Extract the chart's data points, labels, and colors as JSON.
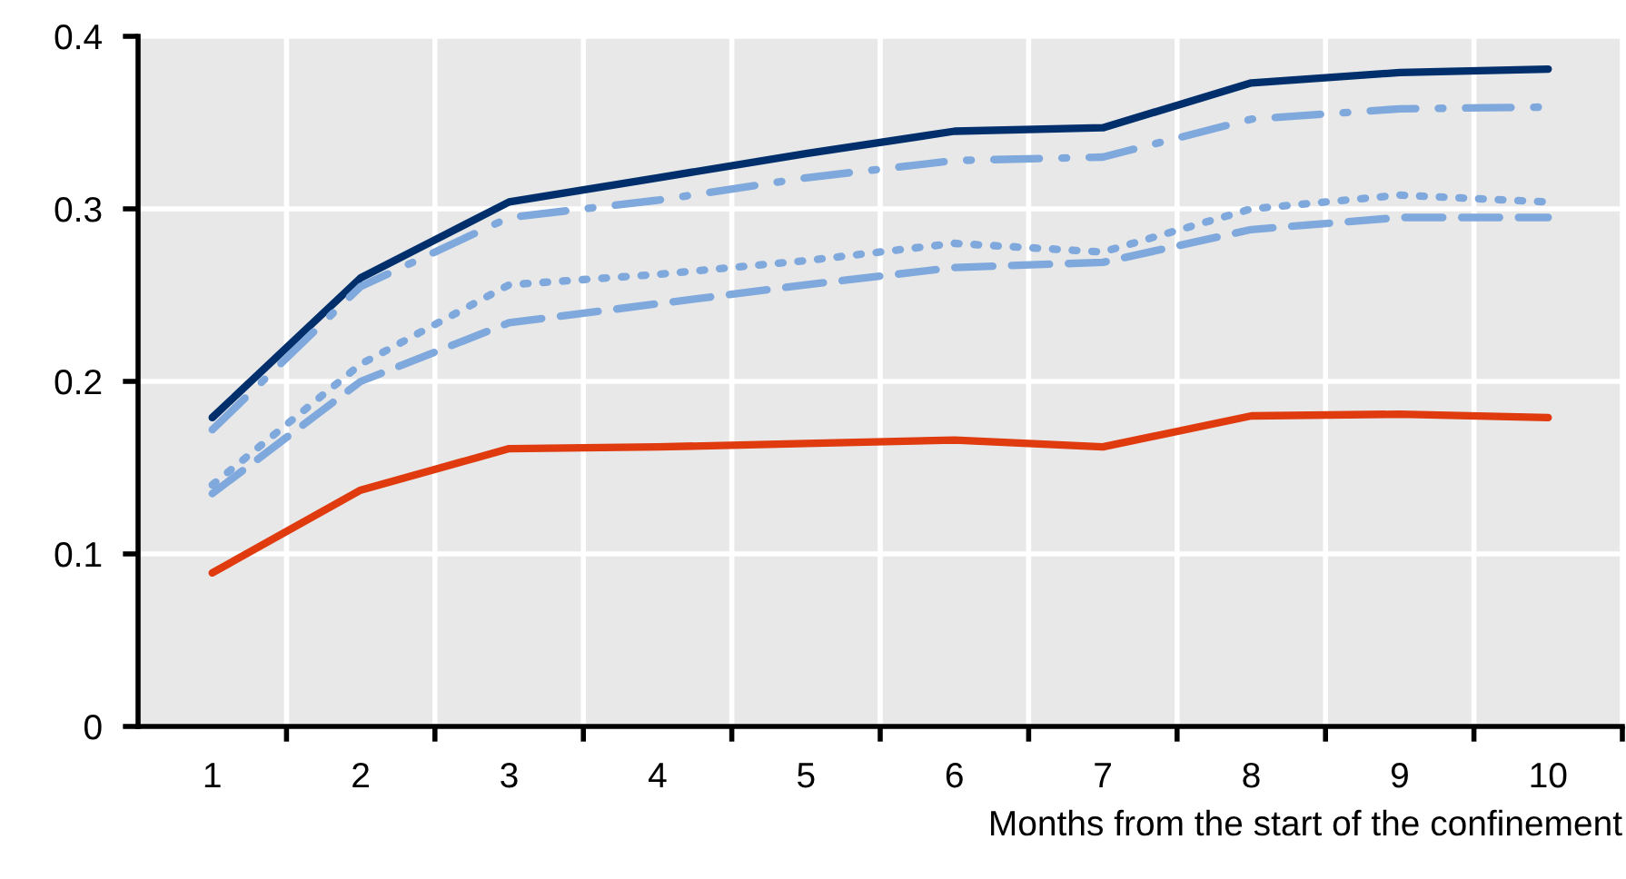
{
  "chart_data": {
    "type": "line",
    "xlabel": "Months from the start of the confinement",
    "categories": [
      "1",
      "2",
      "3",
      "4",
      "5",
      "6",
      "7",
      "8",
      "9",
      "10"
    ],
    "ylim": [
      0,
      0.4
    ],
    "yticks": [
      {
        "value": 0,
        "label": "0"
      },
      0.1,
      0.2,
      0.3,
      0.4
    ],
    "grid": true,
    "marker": "none",
    "series": [
      {
        "color": "#002f6c",
        "line_style": "solid",
        "values": [
          0.179,
          0.26,
          0.304,
          0.318,
          0.332,
          0.345,
          0.347,
          0.373,
          0.379,
          0.381
        ]
      },
      {
        "color": "#7fa8dc",
        "line_style": "dashdot",
        "values": [
          0.172,
          0.255,
          0.295,
          0.305,
          0.318,
          0.328,
          0.33,
          0.352,
          0.358,
          0.359
        ]
      },
      {
        "color": "#7fa8dc",
        "line_style": "dotted",
        "values": [
          0.14,
          0.21,
          0.256,
          0.262,
          0.27,
          0.28,
          0.275,
          0.3,
          0.308,
          0.304
        ]
      },
      {
        "color": "#7fa8dc",
        "line_style": "dashed",
        "values": [
          0.135,
          0.2,
          0.234,
          0.245,
          0.256,
          0.266,
          0.269,
          0.288,
          0.295,
          0.295
        ]
      },
      {
        "color": "#e03a0f",
        "line_style": "solid",
        "values": [
          0.089,
          0.137,
          0.161,
          0.162,
          0.164,
          0.166,
          0.162,
          0.18,
          0.181,
          0.179
        ]
      }
    ]
  }
}
